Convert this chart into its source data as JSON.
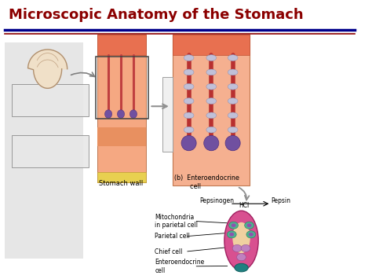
{
  "title": "Microscopic Anatomy of the Stomach",
  "title_color": "#8B0000",
  "title_fontsize": 13,
  "bg_color": "#FFFFFF",
  "separator_color_blue": "#00008B",
  "separator_color_red": "#8B0000",
  "stomach_wall_label": "Stomach wall",
  "entero_label": "(b)  Enteroendocrine\n        cell",
  "pepsinogen_label": "Pepsinogen",
  "hcl_label": "HCl",
  "pepsin_label": "Pepsin",
  "mito_label": "Mitochondria\nin parietal cell",
  "parietal_label": "Parietal cell",
  "chief_label": "Chief cell",
  "entero_cell_label": "Enteroendocrine\ncell"
}
